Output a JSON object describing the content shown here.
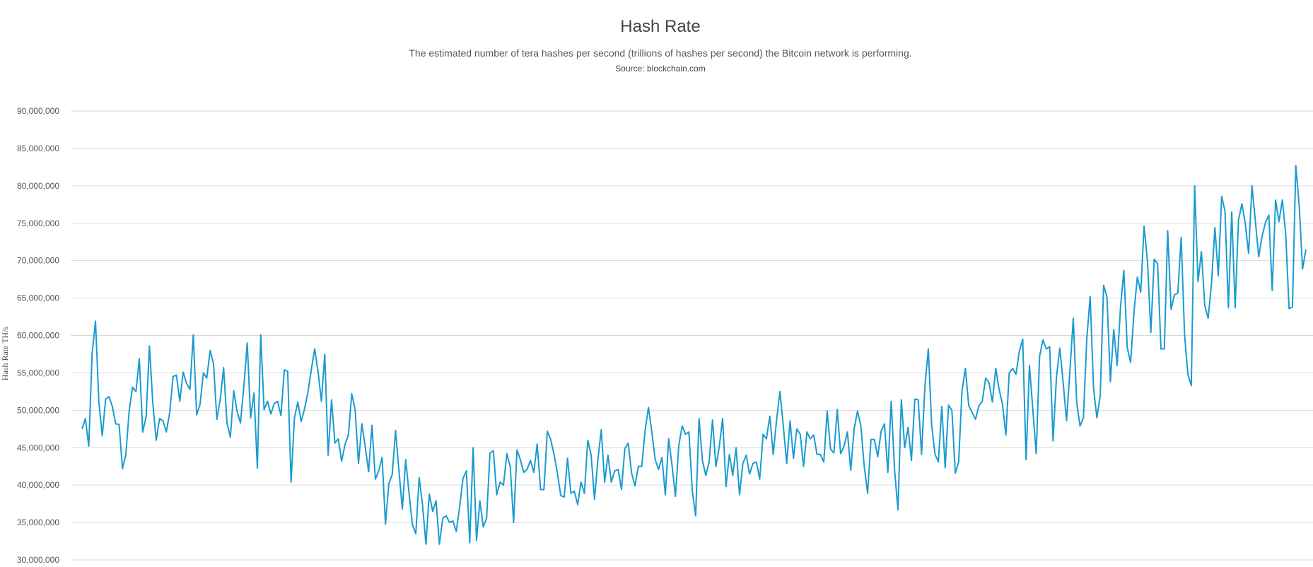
{
  "header": {
    "title": "Hash Rate",
    "subtitle": "The estimated number of tera hashes per second (trillions of hashes per second) the Bitcoin network is performing.",
    "source": "Source: blockchain.com"
  },
  "colors": {
    "line": "#1b9bd1",
    "grid": "#d9d9d9",
    "text": "#555555"
  },
  "chart_data": {
    "type": "line",
    "title": "Hash Rate",
    "subtitle": "The estimated number of tera hashes per second (trillions of hashes per second) the Bitcoin network is performing.",
    "ylabel": "Hash Rate TH/s",
    "xlabel": "",
    "ylim": [
      30000000,
      90000000
    ],
    "yticks": [
      30000000,
      35000000,
      40000000,
      45000000,
      50000000,
      55000000,
      60000000,
      65000000,
      70000000,
      75000000,
      80000000,
      85000000,
      90000000
    ],
    "ytick_labels": [
      "30,000,000",
      "35,000,000",
      "40,000,000",
      "45,000,000",
      "50,000,000",
      "55,000,000",
      "60,000,000",
      "65,000,000",
      "70,000,000",
      "75,000,000",
      "80,000,000",
      "85,000,000",
      "90,000,000"
    ],
    "grid": true,
    "legend": "none",
    "series": [
      {
        "values": [
          47.5,
          48.9,
          45.2,
          57.6,
          61.9,
          51.1,
          46.6,
          51.5,
          51.8,
          50.5,
          48.2,
          48.1,
          42.2,
          44.1,
          50.0,
          53.1,
          52.5,
          56.9,
          47.1,
          49.1,
          58.6,
          50.9,
          46.0,
          48.9,
          48.6,
          47.1,
          49.7,
          54.5,
          54.7,
          51.2,
          55.1,
          53.6,
          52.8,
          60.1,
          49.4,
          50.8,
          55.0,
          54.3,
          58.0,
          56.2,
          48.8,
          51.5,
          55.7,
          48.3,
          46.4,
          52.6,
          49.8,
          48.3,
          53.2,
          59.0,
          49.0,
          52.3,
          42.3,
          60.1,
          50.1,
          51.2,
          49.5,
          50.9,
          51.2,
          49.3,
          55.4,
          55.2,
          40.4,
          49.0,
          51.1,
          48.5,
          50.2,
          52.4,
          55.4,
          58.2,
          55.2,
          51.2,
          57.5,
          44.0,
          51.4,
          45.6,
          46.2,
          43.2,
          45.4,
          46.7,
          52.2,
          50.1,
          42.9,
          48.2,
          45.1,
          41.8,
          48.0,
          40.8,
          41.9,
          43.7,
          34.8,
          40.2,
          41.4,
          47.3,
          41.9,
          36.8,
          43.4,
          38.9,
          34.7,
          33.5,
          41.0,
          37.3,
          32.1,
          38.8,
          36.5,
          37.9,
          32.1,
          35.6,
          35.9,
          35.0,
          35.2,
          33.8,
          37.1,
          40.9,
          41.9,
          32.3,
          45.0,
          32.6,
          37.9,
          34.4,
          35.6,
          44.3,
          44.6,
          38.7,
          40.4,
          40.0,
          44.2,
          42.5,
          35.0,
          44.7,
          43.4,
          41.7,
          42.1,
          43.3,
          41.7,
          45.5,
          39.4,
          39.4,
          47.2,
          46.1,
          44.1,
          41.6,
          38.6,
          38.4,
          43.6,
          38.9,
          39.2,
          37.4,
          40.4,
          38.9,
          46.0,
          44.0,
          38.1,
          43.4,
          47.4,
          40.4,
          44.0,
          40.4,
          41.9,
          42.1,
          39.4,
          44.9,
          45.6,
          41.6,
          39.9,
          42.5,
          42.5,
          47.3,
          50.4,
          47.1,
          43.4,
          42.1,
          43.7,
          38.7,
          46.2,
          42.6,
          38.5,
          45.3,
          47.9,
          46.8,
          47.1,
          39.2,
          35.9,
          48.9,
          43.3,
          41.3,
          43.1,
          48.7,
          42.5,
          45.1,
          48.9,
          39.8,
          44.1,
          41.3,
          45.0,
          38.7,
          42.9,
          44.0,
          41.5,
          42.9,
          43.1,
          40.8,
          46.8,
          46.2,
          49.2,
          44.1,
          48.7,
          52.5,
          47.9,
          42.9,
          48.6,
          43.6,
          47.5,
          46.8,
          42.5,
          47.1,
          46.2,
          46.7,
          44.1,
          44.1,
          43.1,
          49.9,
          44.8,
          44.3,
          50.1,
          44.2,
          45.2,
          47.1,
          42.0,
          47.5,
          49.9,
          47.9,
          42.5,
          38.9,
          46.1,
          46.1,
          43.8,
          47.2,
          48.2,
          41.7,
          51.2,
          42.0,
          36.7,
          51.4,
          45.0,
          47.7,
          43.3,
          51.5,
          51.4,
          44.1,
          53.2,
          58.2,
          48.0,
          44.1,
          43.1,
          50.5,
          42.3,
          50.7,
          50.0,
          41.6,
          43.1,
          52.6,
          55.6,
          50.6,
          49.7,
          48.8,
          50.6,
          51.2,
          54.3,
          53.7,
          51.1,
          55.6,
          52.8,
          50.8,
          46.7,
          55.0,
          55.6,
          54.8,
          57.9,
          59.5,
          43.4,
          56.0,
          50.1,
          44.2,
          57.2,
          59.4,
          58.2,
          58.5,
          45.9,
          54.4,
          58.3,
          53.7,
          48.6,
          55.3,
          62.3,
          51.1,
          47.9,
          49.0,
          59.5,
          65.2,
          53.0,
          49.0,
          52.0,
          66.7,
          65.1,
          53.8,
          60.8,
          56.0,
          63.7,
          68.7,
          58.4,
          56.4,
          63.1,
          67.8,
          65.8,
          74.6,
          70.0,
          60.4,
          70.2,
          69.6,
          58.2,
          58.2,
          74.0,
          63.5,
          65.4,
          65.7,
          73.1,
          60.1,
          54.8,
          53.3,
          80.0,
          67.2,
          71.2,
          64.0,
          62.3,
          67.0,
          74.4,
          68.0,
          78.6,
          76.6,
          63.7,
          76.5,
          63.7,
          75.4,
          77.6,
          75.0,
          71.0,
          80.0,
          75.3,
          70.5,
          73.3,
          75.1,
          76.1,
          66.0,
          78.1,
          75.2,
          78.1,
          73.6,
          63.6,
          63.8,
          82.7,
          77.4,
          68.9,
          71.5
        ]
      }
    ]
  }
}
